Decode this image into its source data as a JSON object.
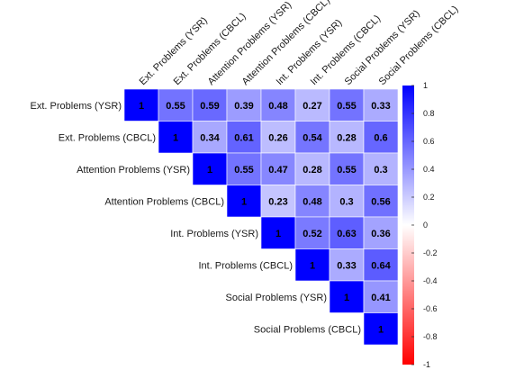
{
  "chart_data": {
    "type": "heatmap",
    "variables": [
      "Ext. Problems (YSR)",
      "Ext. Problems (CBCL)",
      "Attention Problems (YSR)",
      "Attention Problems (CBCL)",
      "Int. Problems (YSR)",
      "Int. Problems (CBCL)",
      "Social Problems (YSR)",
      "Social Problems (CBCL)"
    ],
    "matrix": [
      [
        1,
        0.55,
        0.59,
        0.39,
        0.48,
        0.27,
        0.55,
        0.33
      ],
      [
        null,
        1,
        0.34,
        0.61,
        0.26,
        0.54,
        0.28,
        0.6
      ],
      [
        null,
        null,
        1,
        0.55,
        0.47,
        0.28,
        0.55,
        0.3
      ],
      [
        null,
        null,
        null,
        1,
        0.23,
        0.48,
        0.3,
        0.56
      ],
      [
        null,
        null,
        null,
        null,
        1,
        0.52,
        0.63,
        0.36
      ],
      [
        null,
        null,
        null,
        null,
        null,
        1,
        0.33,
        0.64
      ],
      [
        null,
        null,
        null,
        null,
        null,
        null,
        1,
        0.41
      ],
      [
        null,
        null,
        null,
        null,
        null,
        null,
        null,
        1
      ]
    ],
    "colorbar": {
      "range": [
        -1,
        1
      ],
      "ticks": [
        "1",
        "0.8",
        "0.6",
        "0.4",
        "0.2",
        "0",
        "-0.2",
        "-0.4",
        "-0.6",
        "-0.8",
        "-1"
      ],
      "colors": {
        "negative": "#ff0000",
        "zero": "#ffffff",
        "positive": "#0000ff"
      }
    },
    "legend_position": "right"
  }
}
